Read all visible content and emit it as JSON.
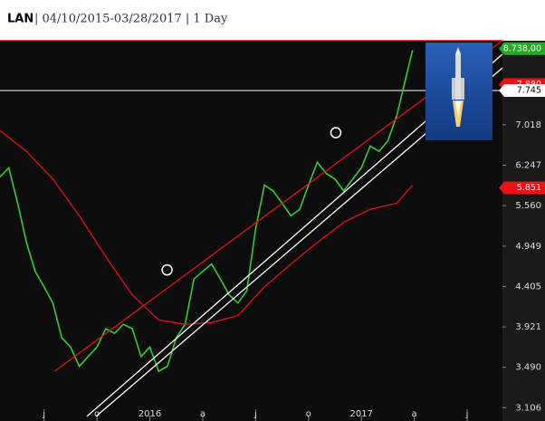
{
  "chart_data": {
    "type": "line",
    "ticker": "LAN",
    "title": "| 04/10/2015-03/28/2017 | 1 Day",
    "log_scale": true,
    "xlim": [
      3.5,
      32
    ],
    "ylim": [
      2.99,
      8.94
    ],
    "xticks": [
      {
        "value": 6,
        "label": "j"
      },
      {
        "value": 9,
        "label": "o"
      },
      {
        "value": 12,
        "label": "2016"
      },
      {
        "value": 15,
        "label": "a"
      },
      {
        "value": 18,
        "label": "j"
      },
      {
        "value": 21,
        "label": "o"
      },
      {
        "value": 24,
        "label": "2017"
      },
      {
        "value": 27,
        "label": "a"
      },
      {
        "value": 30,
        "label": "j"
      }
    ],
    "yticks": [
      3.106,
      {
        "value": 3.49,
        "label": "3.490"
      },
      3.921,
      4.405,
      4.949,
      {
        "value": 5.56,
        "label": "5.560"
      },
      6.247,
      7.018
    ],
    "series": [
      {
        "color": "#33cc33",
        "x": [
          3.5,
          4,
          4.5,
          5,
          5.5,
          6,
          6.5,
          7,
          7.5,
          8,
          8.5,
          9,
          9.5,
          10,
          10.5,
          11,
          11.5,
          12,
          12.5,
          13,
          13.5,
          14,
          14.5,
          15,
          15.5,
          16,
          16.5,
          17,
          17.5,
          18,
          18.5,
          19,
          19.5,
          20,
          20.5,
          21,
          21.5,
          22,
          22.5,
          23,
          23.5,
          24,
          24.5,
          25,
          25.5,
          26,
          26.5,
          26.9
        ],
        "values": [
          6.04,
          6.2,
          5.6,
          5.0,
          4.6,
          4.4,
          4.2,
          3.8,
          3.7,
          3.5,
          3.6,
          3.7,
          3.9,
          3.85,
          3.95,
          3.9,
          3.6,
          3.7,
          3.45,
          3.5,
          3.8,
          3.95,
          4.5,
          4.6,
          4.7,
          4.5,
          4.3,
          4.2,
          4.35,
          5.2,
          5.9,
          5.8,
          5.6,
          5.4,
          5.5,
          5.9,
          6.3,
          6.1,
          6.0,
          5.8,
          6.0,
          6.2,
          6.6,
          6.5,
          6.7,
          7.2,
          8.0,
          8.7
        ]
      },
      {
        "color": "#e01010",
        "x": [
          3.5,
          5,
          6.5,
          8,
          9.5,
          11,
          12.5,
          14,
          15.5,
          17,
          18.5,
          20,
          21.5,
          23,
          24.5,
          26,
          26.9
        ],
        "values": [
          6.9,
          6.5,
          6.0,
          5.4,
          4.8,
          4.3,
          4.0,
          3.95,
          3.97,
          4.05,
          4.4,
          4.7,
          5.0,
          5.3,
          5.5,
          5.6,
          5.9
        ]
      },
      {
        "color": "#e01010",
        "x": [
          6.6,
          32
        ],
        "values": [
          3.45,
          8.94
        ]
      },
      {
        "color": "#ffffff",
        "x": [
          8.43,
          32
        ],
        "values": [
          3.03,
          8.6
        ]
      },
      {
        "color": "#ffffff",
        "x": [
          8.95,
          32
        ],
        "values": [
          3.03,
          8.27
        ]
      }
    ],
    "markers": {
      "x": [
        12.98,
        22.55
      ],
      "values": [
        4.62,
        6.86
      ]
    },
    "price_tags": [
      {
        "value": 8.738,
        "label": "8.738,00",
        "color": "#22aa22"
      },
      {
        "value": 7.88,
        "label": "7.880",
        "color": "#ee1111"
      },
      {
        "value": 7.745,
        "label": "7.745",
        "color": "#ffffff"
      },
      {
        "value": 5.851,
        "label": "5.851",
        "color": "#ee1111"
      }
    ],
    "hline": 7.745
  }
}
